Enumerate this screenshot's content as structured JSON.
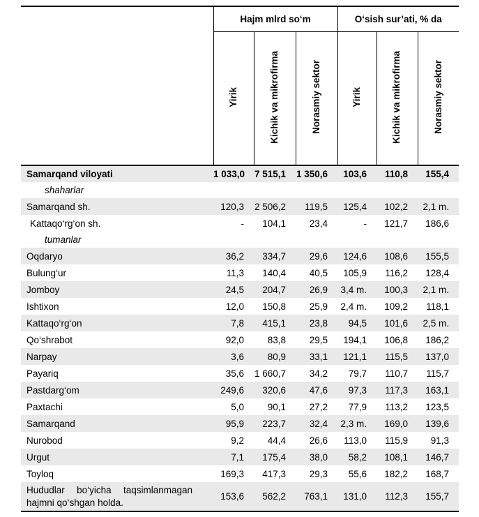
{
  "table": {
    "header": {
      "groups": [
        {
          "label": "Hajm mlrd so‘m",
          "columns": [
            "Yirik",
            "Kichik va mikrofirma",
            "Norasmiy sektor"
          ]
        },
        {
          "label": "O‘sish sur’ati, % da",
          "columns": [
            "Yirik",
            "Kichik va mikrofirma",
            "Norasmiy sektor"
          ]
        }
      ]
    },
    "rows": [
      {
        "type": "total",
        "label": "Samarqand viloyati",
        "values": [
          "1 033,0",
          "7 515,1",
          "1 350,6",
          "103,6",
          "110,8",
          "155,4"
        ]
      },
      {
        "type": "subheading",
        "label": "shaharlar"
      },
      {
        "type": "data",
        "label": "Samarqand sh.",
        "values": [
          "120,3",
          "2 506,2",
          "119,5",
          "125,4",
          "102,2",
          "2,1 m."
        ]
      },
      {
        "type": "data",
        "label": "Kattaqo‘rg‘on sh.",
        "indent": true,
        "values": [
          "-",
          "104,1",
          "23,4",
          "-",
          "121,7",
          "186,6"
        ]
      },
      {
        "type": "subheading",
        "label": "tumanlar"
      },
      {
        "type": "data",
        "label": "Oqdaryo",
        "values": [
          "36,2",
          "334,7",
          "29,6",
          "124,6",
          "108,6",
          "155,5"
        ]
      },
      {
        "type": "data",
        "label": "Bulung‘ur",
        "values": [
          "11,3",
          "140,4",
          "40,5",
          "105,9",
          "116,2",
          "128,4"
        ]
      },
      {
        "type": "data",
        "label": "Jomboy",
        "values": [
          "24,5",
          "204,7",
          "26,9",
          "3,4 m.",
          "100,3",
          "2,1 m."
        ]
      },
      {
        "type": "data",
        "label": "Ishtixon",
        "values": [
          "12,0",
          "150,8",
          "25,9",
          "2,4 m.",
          "109,2",
          "118,1"
        ]
      },
      {
        "type": "data",
        "label": "Kattaqo‘rg‘on",
        "values": [
          "7,8",
          "415,1",
          "23,8",
          "94,5",
          "101,6",
          "2,5 m."
        ]
      },
      {
        "type": "data",
        "label": "Qo‘shrabot",
        "values": [
          "92,0",
          "83,8",
          "29,5",
          "194,1",
          "106,8",
          "186,2"
        ]
      },
      {
        "type": "data",
        "label": "Narpay",
        "values": [
          "3,6",
          "80,9",
          "33,1",
          "121,1",
          "115,5",
          "137,0"
        ]
      },
      {
        "type": "data",
        "label": "Payariq",
        "values": [
          "35,6",
          "1 660,7",
          "34,2",
          "79,7",
          "110,7",
          "115,7"
        ]
      },
      {
        "type": "data",
        "label": "Pastdarg‘om",
        "values": [
          "249,6",
          "320,6",
          "47,6",
          "97,3",
          "117,3",
          "163,1"
        ]
      },
      {
        "type": "data",
        "label": "Paxtachi",
        "values": [
          "5,0",
          "90,1",
          "27,2",
          "77,9",
          "113,2",
          "123,5"
        ]
      },
      {
        "type": "data",
        "label": "Samarqand",
        "values": [
          "95,9",
          "223,7",
          "32,4",
          "2,3 m.",
          "169,0",
          "139,6"
        ]
      },
      {
        "type": "data",
        "label": "Nurobod",
        "values": [
          "9,2",
          "44,4",
          "26,6",
          "113,0",
          "115,9",
          "91,3"
        ]
      },
      {
        "type": "data",
        "label": "Urgut",
        "values": [
          "7,1",
          "175,4",
          "38,0",
          "58,2",
          "108,1",
          "146,7"
        ]
      },
      {
        "type": "data",
        "label": "Toyloq",
        "values": [
          "169,3",
          "417,3",
          "29,3",
          "55,6",
          "182,2",
          "168,7"
        ]
      },
      {
        "type": "data",
        "label": "Hududlar bo‘yicha taqsimlanmagan hajmni qo‘shgan holda.",
        "wrap": true,
        "values": [
          "153,6",
          "562,2",
          "763,1",
          "131,0",
          "112,3",
          "155,7"
        ]
      }
    ]
  },
  "colors": {
    "shaded_row": "#e9e9e9",
    "border": "#000000"
  }
}
